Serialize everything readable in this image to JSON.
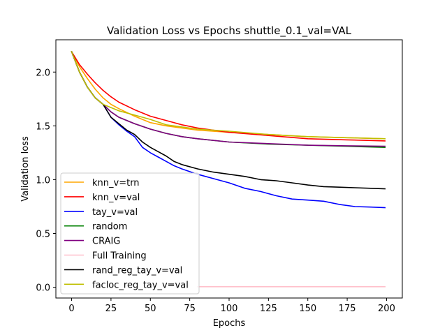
{
  "chart_data": {
    "type": "line",
    "title": "Validation Loss vs Epochs shuttle_0.1_val=VAL",
    "xlabel": "Epochs",
    "ylabel": "Validation loss",
    "xlim": [
      -10,
      210
    ],
    "ylim": [
      -0.1,
      2.3
    ],
    "xticks": [
      0,
      25,
      50,
      75,
      100,
      125,
      150,
      175,
      200
    ],
    "yticks": [
      0.0,
      0.5,
      1.0,
      1.5,
      2.0
    ],
    "xtick_labels": [
      "0",
      "25",
      "50",
      "75",
      "100",
      "125",
      "150",
      "175",
      "200"
    ],
    "ytick_labels": [
      "0.0",
      "0.5",
      "1.0",
      "1.5",
      "2.0"
    ],
    "grid": false,
    "legend_position": "lower-left",
    "series": [
      {
        "name": "knn_v=trn",
        "color": "#ffa500",
        "points": [
          [
            0,
            2.19
          ],
          [
            5,
            2.05
          ],
          [
            10,
            1.94
          ],
          [
            15,
            1.84
          ],
          [
            20,
            1.76
          ],
          [
            25,
            1.7
          ],
          [
            30,
            1.66
          ],
          [
            40,
            1.59
          ],
          [
            50,
            1.53
          ],
          [
            60,
            1.5
          ],
          [
            70,
            1.48
          ],
          [
            80,
            1.46
          ],
          [
            100,
            1.44
          ],
          [
            125,
            1.42
          ],
          [
            150,
            1.4
          ],
          [
            175,
            1.39
          ],
          [
            199,
            1.38
          ]
        ]
      },
      {
        "name": "knn_v=val",
        "color": "#ff0000",
        "points": [
          [
            0,
            2.19
          ],
          [
            5,
            2.07
          ],
          [
            10,
            1.98
          ],
          [
            15,
            1.9
          ],
          [
            20,
            1.83
          ],
          [
            25,
            1.77
          ],
          [
            30,
            1.72
          ],
          [
            40,
            1.65
          ],
          [
            50,
            1.59
          ],
          [
            60,
            1.55
          ],
          [
            70,
            1.51
          ],
          [
            80,
            1.48
          ],
          [
            90,
            1.46
          ],
          [
            100,
            1.44
          ],
          [
            125,
            1.41
          ],
          [
            150,
            1.38
          ],
          [
            175,
            1.37
          ],
          [
            199,
            1.36
          ]
        ]
      },
      {
        "name": "tay_v=val",
        "color": "#0000ff",
        "points": [
          [
            0,
            2.19
          ],
          [
            5,
            2.0
          ],
          [
            10,
            1.86
          ],
          [
            15,
            1.76
          ],
          [
            20,
            1.7
          ],
          [
            25,
            1.58
          ],
          [
            30,
            1.51
          ],
          [
            35,
            1.45
          ],
          [
            40,
            1.4
          ],
          [
            45,
            1.3
          ],
          [
            50,
            1.25
          ],
          [
            55,
            1.21
          ],
          [
            60,
            1.17
          ],
          [
            65,
            1.13
          ],
          [
            70,
            1.1
          ],
          [
            80,
            1.05
          ],
          [
            90,
            1.01
          ],
          [
            100,
            0.97
          ],
          [
            110,
            0.92
          ],
          [
            120,
            0.89
          ],
          [
            130,
            0.85
          ],
          [
            140,
            0.82
          ],
          [
            150,
            0.81
          ],
          [
            160,
            0.8
          ],
          [
            170,
            0.77
          ],
          [
            180,
            0.75
          ],
          [
            190,
            0.745
          ],
          [
            199,
            0.74
          ]
        ]
      },
      {
        "name": "random",
        "color": "#008000",
        "points": [
          [
            0,
            2.19
          ],
          [
            5,
            2.0
          ],
          [
            10,
            1.86
          ],
          [
            15,
            1.76
          ],
          [
            20,
            1.7
          ],
          [
            25,
            1.63
          ],
          [
            30,
            1.58
          ],
          [
            40,
            1.52
          ],
          [
            50,
            1.47
          ],
          [
            60,
            1.43
          ],
          [
            70,
            1.4
          ],
          [
            80,
            1.38
          ],
          [
            100,
            1.35
          ],
          [
            125,
            1.33
          ],
          [
            150,
            1.32
          ],
          [
            175,
            1.31
          ],
          [
            199,
            1.3
          ]
        ]
      },
      {
        "name": "CRAIG",
        "color": "#800080",
        "points": [
          [
            0,
            2.19
          ],
          [
            5,
            2.0
          ],
          [
            10,
            1.86
          ],
          [
            15,
            1.76
          ],
          [
            20,
            1.7
          ],
          [
            25,
            1.63
          ],
          [
            30,
            1.58
          ],
          [
            40,
            1.52
          ],
          [
            50,
            1.47
          ],
          [
            60,
            1.43
          ],
          [
            70,
            1.4
          ],
          [
            80,
            1.38
          ],
          [
            100,
            1.35
          ],
          [
            125,
            1.335
          ],
          [
            150,
            1.32
          ],
          [
            175,
            1.315
          ],
          [
            199,
            1.31
          ]
        ]
      },
      {
        "name": "Full Training",
        "color": "#ffc0cb",
        "points": [
          [
            80,
            0.005
          ],
          [
            199,
            0.005
          ]
        ]
      },
      {
        "name": "rand_reg_tay_v=val",
        "color": "#000000",
        "points": [
          [
            0,
            2.19
          ],
          [
            5,
            2.0
          ],
          [
            10,
            1.86
          ],
          [
            15,
            1.76
          ],
          [
            20,
            1.7
          ],
          [
            25,
            1.58
          ],
          [
            30,
            1.52
          ],
          [
            35,
            1.46
          ],
          [
            40,
            1.42
          ],
          [
            45,
            1.35
          ],
          [
            50,
            1.3
          ],
          [
            55,
            1.26
          ],
          [
            60,
            1.22
          ],
          [
            65,
            1.17
          ],
          [
            70,
            1.14
          ],
          [
            80,
            1.1
          ],
          [
            90,
            1.07
          ],
          [
            100,
            1.05
          ],
          [
            110,
            1.03
          ],
          [
            120,
            1.0
          ],
          [
            130,
            0.99
          ],
          [
            140,
            0.97
          ],
          [
            150,
            0.95
          ],
          [
            160,
            0.935
          ],
          [
            170,
            0.93
          ],
          [
            180,
            0.925
          ],
          [
            190,
            0.92
          ],
          [
            199,
            0.915
          ]
        ]
      },
      {
        "name": "facloc_reg_tay_v=val",
        "color": "#bfbf00",
        "points": [
          [
            0,
            2.19
          ],
          [
            5,
            2.0
          ],
          [
            10,
            1.86
          ],
          [
            15,
            1.76
          ],
          [
            20,
            1.7
          ],
          [
            25,
            1.67
          ],
          [
            30,
            1.64
          ],
          [
            40,
            1.6
          ],
          [
            50,
            1.56
          ],
          [
            60,
            1.51
          ],
          [
            70,
            1.49
          ],
          [
            80,
            1.47
          ],
          [
            100,
            1.45
          ],
          [
            125,
            1.42
          ],
          [
            150,
            1.4
          ],
          [
            175,
            1.39
          ],
          [
            199,
            1.38
          ]
        ]
      }
    ]
  }
}
